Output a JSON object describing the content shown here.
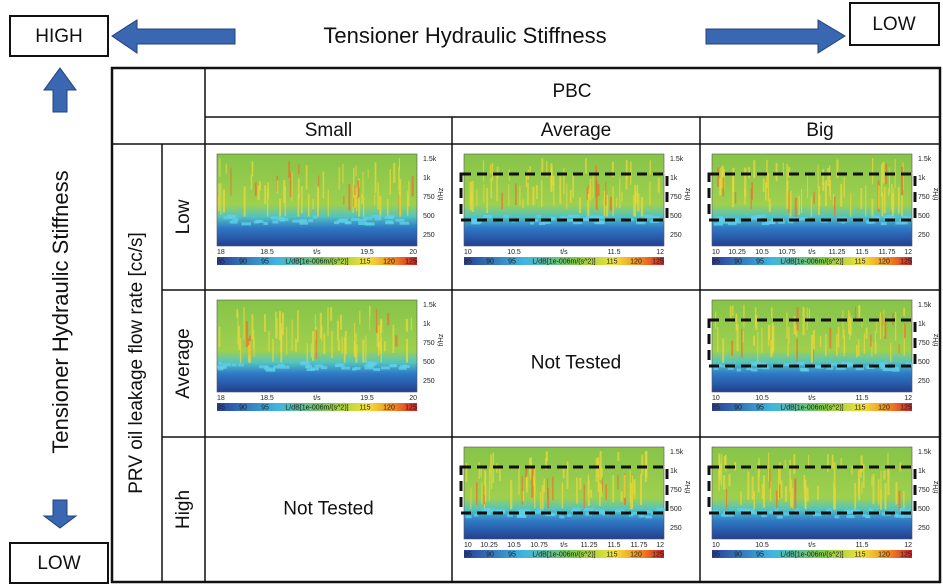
{
  "header": {
    "left_label": "HIGH",
    "title": "Tensioner Hydraulic Stiffness",
    "right_label": "LOW"
  },
  "side": {
    "title": "Tensioner Hydraulic Stiffness",
    "bottom_label": "LOW"
  },
  "table": {
    "group_header": "PBC",
    "columns": [
      "Small",
      "Average",
      "Big"
    ],
    "row_group_label": "PRV oil leakage flow rate [cc/s]",
    "rows": [
      {
        "label": "Low",
        "cells": [
          {
            "plot": {
              "dashed": false,
              "y_labels": [
                "1.5k",
                "1k",
                "750",
                "500",
                "250"
              ],
              "y_title": "f/Hz",
              "x_labels": [
                "18",
                "18.5",
                "t/s",
                "19.5",
                "20"
              ],
              "colorbar_labels": [
                "85",
                "90",
                "95",
                "L/dB[1e-006m/(s^2)]",
                "115",
                "120",
                "125"
              ]
            }
          },
          {
            "plot": {
              "dashed": true,
              "y_labels": [
                "1.5k",
                "1k",
                "750",
                "500",
                "250"
              ],
              "y_title": "f/Hz",
              "x_labels": [
                "10",
                "10.5",
                "t/s",
                "11.5",
                "12"
              ],
              "colorbar_labels": [
                "85",
                "90",
                "95",
                "L/dB[1e-006m/(s^2)]",
                "115",
                "120",
                "125"
              ]
            }
          },
          {
            "plot": {
              "dashed": true,
              "y_labels": [
                "1.5k",
                "1k",
                "750",
                "500",
                "250"
              ],
              "y_title": "f/Hz",
              "x_labels": [
                "10",
                "10.25",
                "10.5",
                "10.75",
                "t/s",
                "11.25",
                "11.5",
                "11.75",
                "12"
              ],
              "colorbar_labels": [
                "85",
                "90",
                "95",
                "L/dB[1e-006m/(s^2)]",
                "115",
                "120",
                "125"
              ]
            }
          }
        ]
      },
      {
        "label": "Average",
        "cells": [
          {
            "plot": {
              "dashed": false,
              "y_labels": [
                "1.5k",
                "1k",
                "750",
                "500",
                "250"
              ],
              "y_title": "f/Hz",
              "x_labels": [
                "18",
                "18.5",
                "t/s",
                "19.5",
                "20"
              ],
              "colorbar_labels": [
                "85",
                "90",
                "95",
                "L/dB[1e-006m/(s^2)]",
                "115",
                "120",
                "125"
              ]
            }
          },
          {
            "text": "Not Tested"
          },
          {
            "plot": {
              "dashed": true,
              "y_labels": [
                "1.5k",
                "1k",
                "750",
                "500",
                "250"
              ],
              "y_title": "f/Hz",
              "x_labels": [
                "10",
                "10.5",
                "t/s",
                "11.5",
                "12"
              ],
              "colorbar_labels": [
                "85",
                "90",
                "95",
                "L/dB[1e-006m/(s^2)]",
                "115",
                "120",
                "125"
              ]
            }
          }
        ]
      },
      {
        "label": "High",
        "cells": [
          {
            "text": "Not Tested"
          },
          {
            "plot": {
              "dashed": true,
              "y_labels": [
                "1.5k",
                "1k",
                "750",
                "500",
                "250"
              ],
              "y_title": "f/Hz",
              "x_labels": [
                "10",
                "10.25",
                "10.5",
                "10.75",
                "t/s",
                "11.25",
                "11.5",
                "11.75",
                "12"
              ],
              "colorbar_labels": [
                "85",
                "90",
                "95",
                "L/dB[1e-006m/(s^2)]",
                "115",
                "120",
                "125"
              ]
            }
          },
          {
            "plot": {
              "dashed": true,
              "y_labels": [
                "1.5k",
                "1k",
                "750",
                "500",
                "250"
              ],
              "y_title": "f/Hz",
              "x_labels": [
                "10",
                "10.5",
                "t/s",
                "11.5",
                "12"
              ],
              "colorbar_labels": [
                "85",
                "90",
                "95",
                "L/dB[1e-006m/(s^2)]",
                "115",
                "120",
                "125"
              ]
            }
          }
        ]
      }
    ]
  }
}
